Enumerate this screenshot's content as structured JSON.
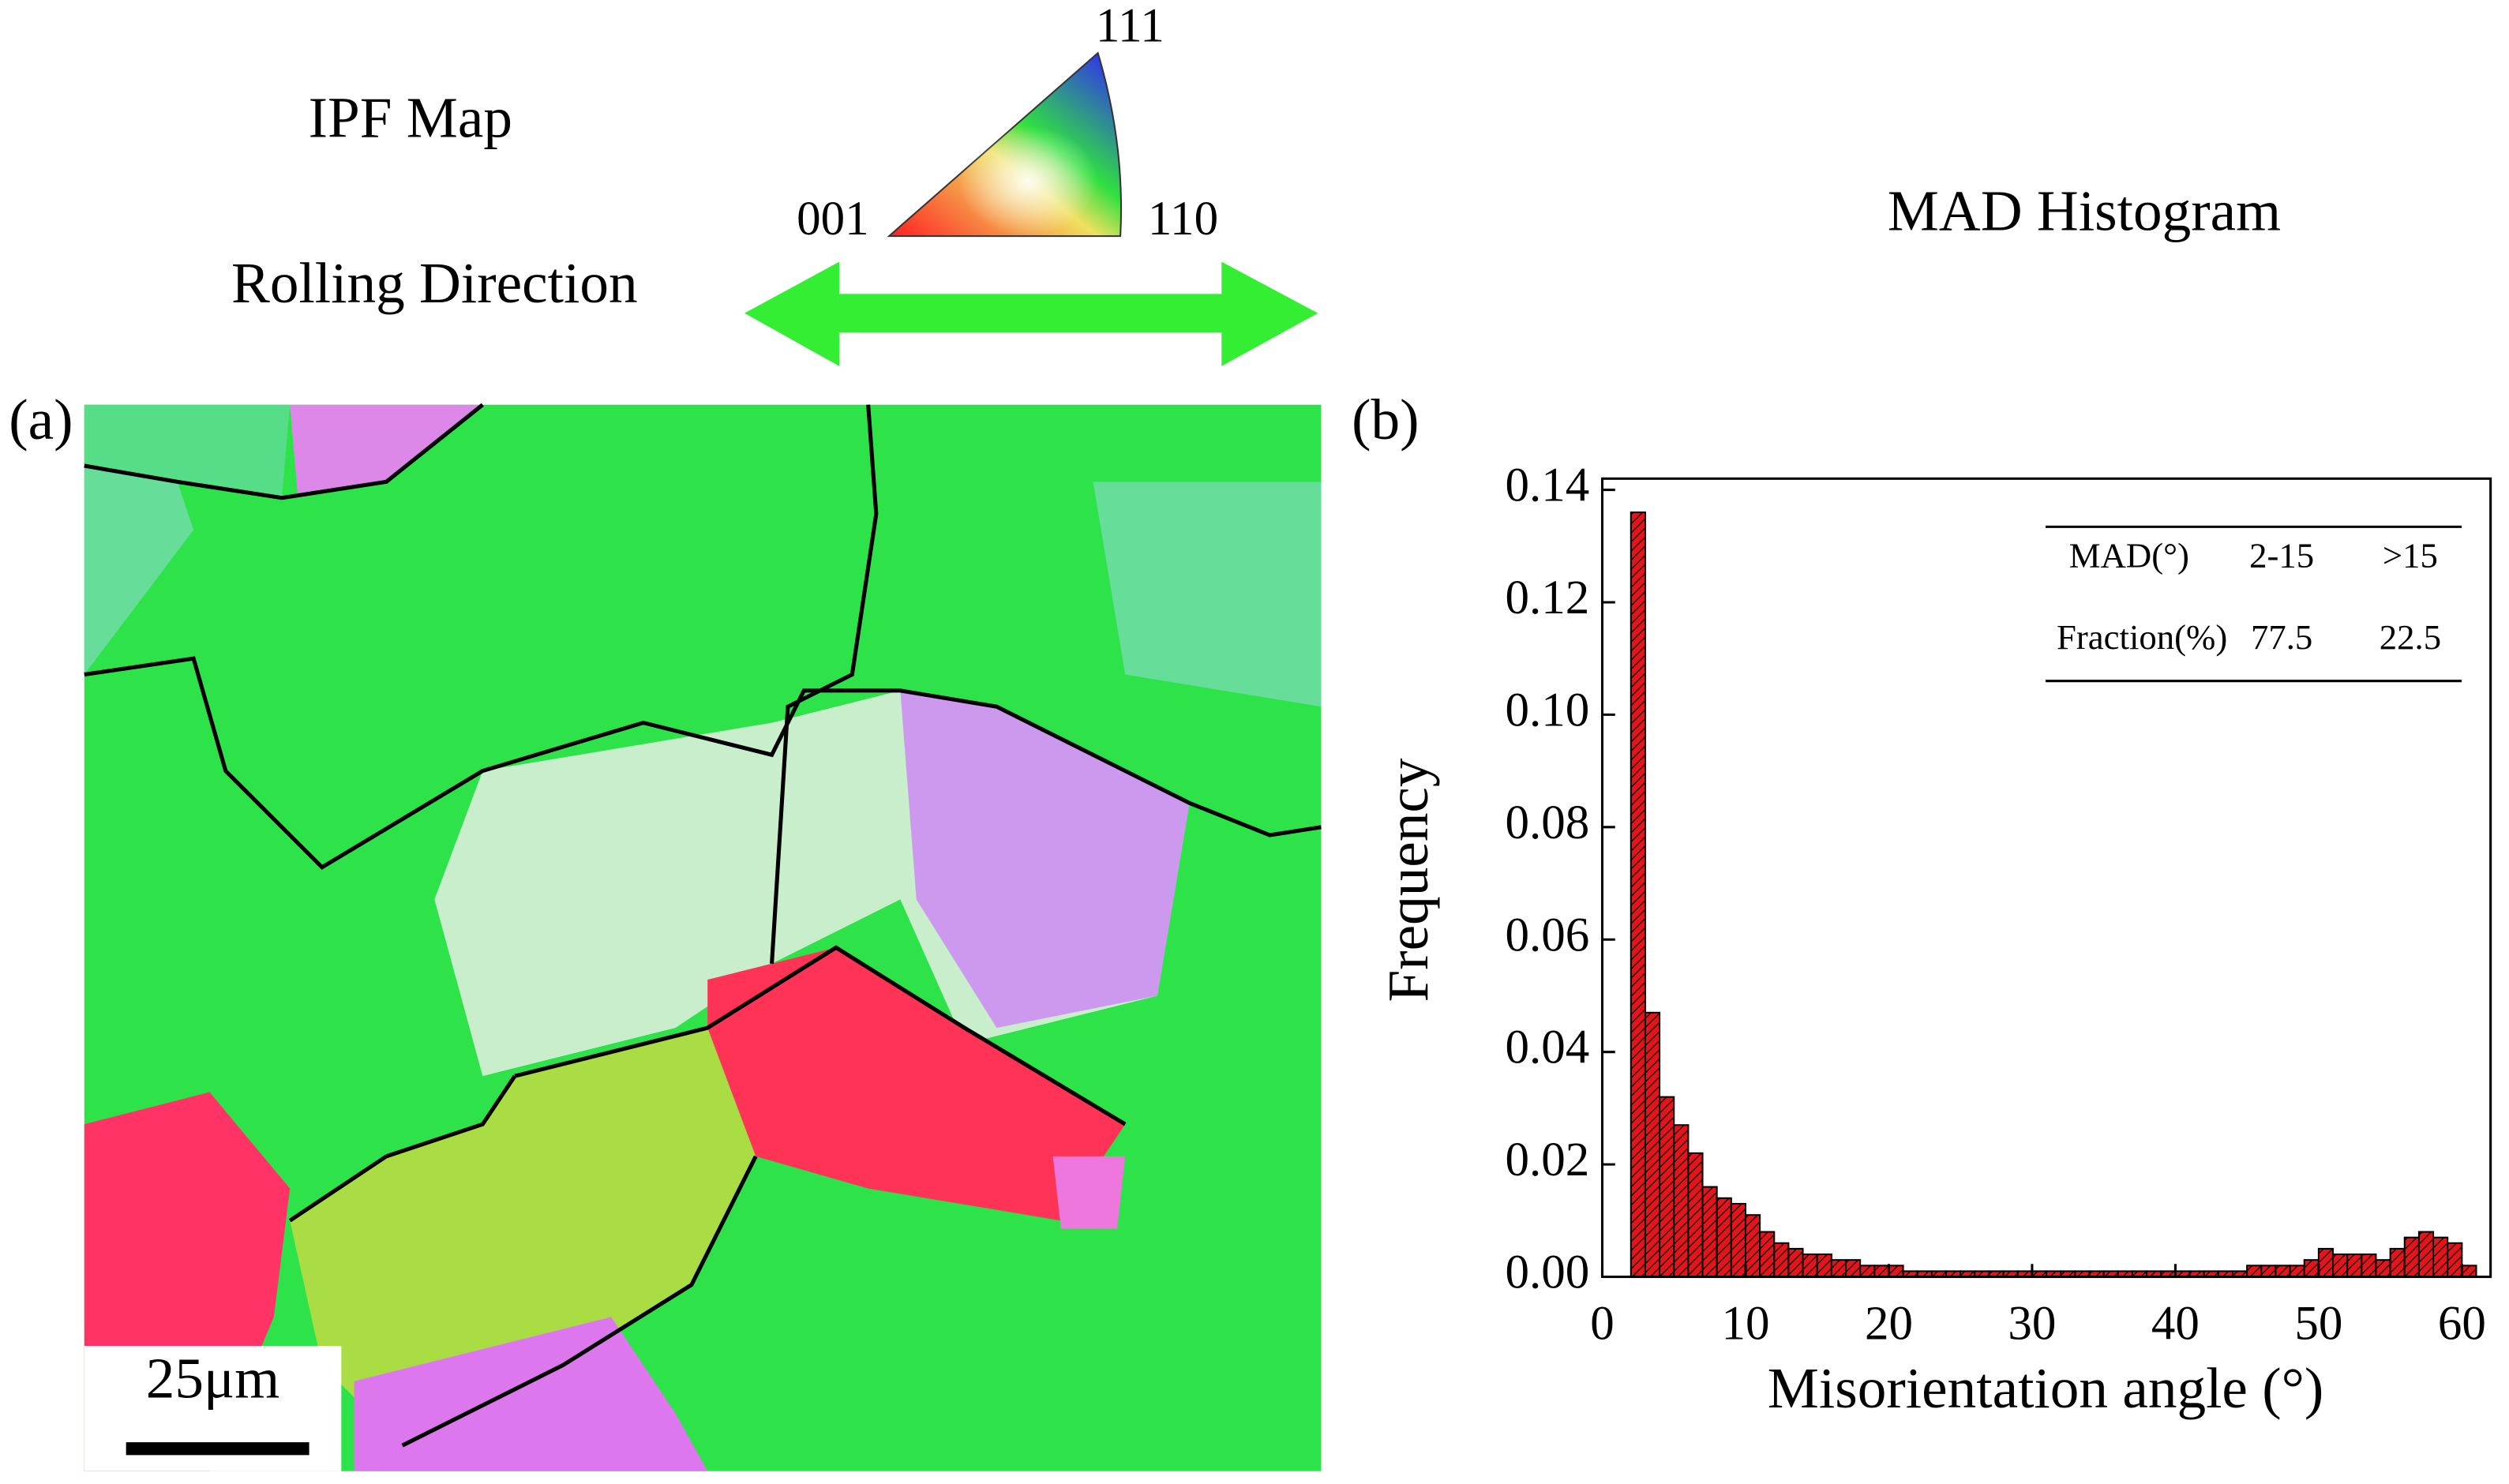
{
  "figure": {
    "ipf_title": "IPF Map",
    "rolling_direction": "Rolling Direction",
    "pole_labels": [
      "001",
      "111",
      "110"
    ],
    "panel_a": "(a)",
    "scale_bar": "25μm",
    "panel_b": "(b)"
  },
  "chart_data": {
    "type": "histogram",
    "title": "MAD  Histogram",
    "xlabel": "Misorientation angle (°)",
    "ylabel": "Frequency",
    "bins": [
      2,
      3,
      4,
      5,
      6,
      7,
      8,
      9,
      10,
      11,
      12,
      13,
      14,
      15,
      16,
      17,
      18,
      19,
      20,
      21,
      22,
      23,
      24,
      25,
      26,
      27,
      28,
      29,
      30,
      31,
      32,
      33,
      34,
      35,
      36,
      37,
      38,
      39,
      40,
      41,
      42,
      43,
      44,
      45,
      46,
      47,
      48,
      49,
      50,
      51,
      52,
      53,
      54,
      55,
      56,
      57,
      58,
      59,
      60,
      61
    ],
    "values": [
      0.136,
      0.047,
      0.032,
      0.027,
      0.022,
      0.016,
      0.014,
      0.013,
      0.011,
      0.008,
      0.006,
      0.005,
      0.004,
      0.004,
      0.003,
      0.003,
      0.002,
      0.002,
      0.002,
      0.001,
      0.001,
      0.001,
      0.001,
      0.001,
      0.001,
      0.001,
      0.001,
      0.001,
      0.001,
      0.001,
      0.001,
      0.001,
      0.001,
      0.001,
      0.001,
      0.001,
      0.001,
      0.001,
      0.001,
      0.001,
      0.001,
      0.001,
      0.001,
      0.002,
      0.002,
      0.002,
      0.002,
      0.003,
      0.005,
      0.004,
      0.004,
      0.004,
      0.003,
      0.005,
      0.007,
      0.008,
      0.007,
      0.006,
      0.002
    ],
    "color": "#e3151a",
    "xlim": [
      0,
      62
    ],
    "ylim": [
      0,
      0.142
    ],
    "xticks": [
      0,
      10,
      20,
      30,
      40,
      50,
      60
    ],
    "yticks": [
      {
        "value": 0,
        "label": "0.00"
      },
      0.02,
      0.04,
      0.06,
      0.08,
      {
        "value": 0.1,
        "label": "0.10"
      },
      0.12,
      0.14
    ],
    "table": {
      "header": [
        "MAD(°)",
        "2-15",
        ">15"
      ],
      "rows": [
        [
          "Fraction(%)",
          "77.5",
          "22.5"
        ]
      ]
    }
  }
}
